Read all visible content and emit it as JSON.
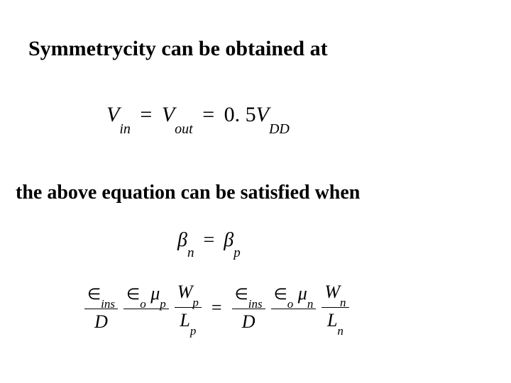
{
  "colors": {
    "bg": "#ffffff",
    "text": "#000000"
  },
  "typography": {
    "family": "Times New Roman",
    "heading_size_pt": 30,
    "eq_size_pt": 28
  },
  "heading1": "Symmetrycity can be obtained at",
  "heading2": "the above equation  can be satisfied when",
  "eq1": {
    "V": "V",
    "in": "in",
    "out": "out",
    "eq": "=",
    "coef": "0. 5",
    "DD": "DD"
  },
  "eq2": {
    "beta": "β",
    "n": "n",
    "p": "p",
    "eq": "="
  },
  "eq3": {
    "elem": "∈",
    "ins": "ins",
    "o": "o",
    "mu": "μ",
    "W": "W",
    "D": "D",
    "L": "L",
    "p": "p",
    "n": "n",
    "eq": "="
  }
}
